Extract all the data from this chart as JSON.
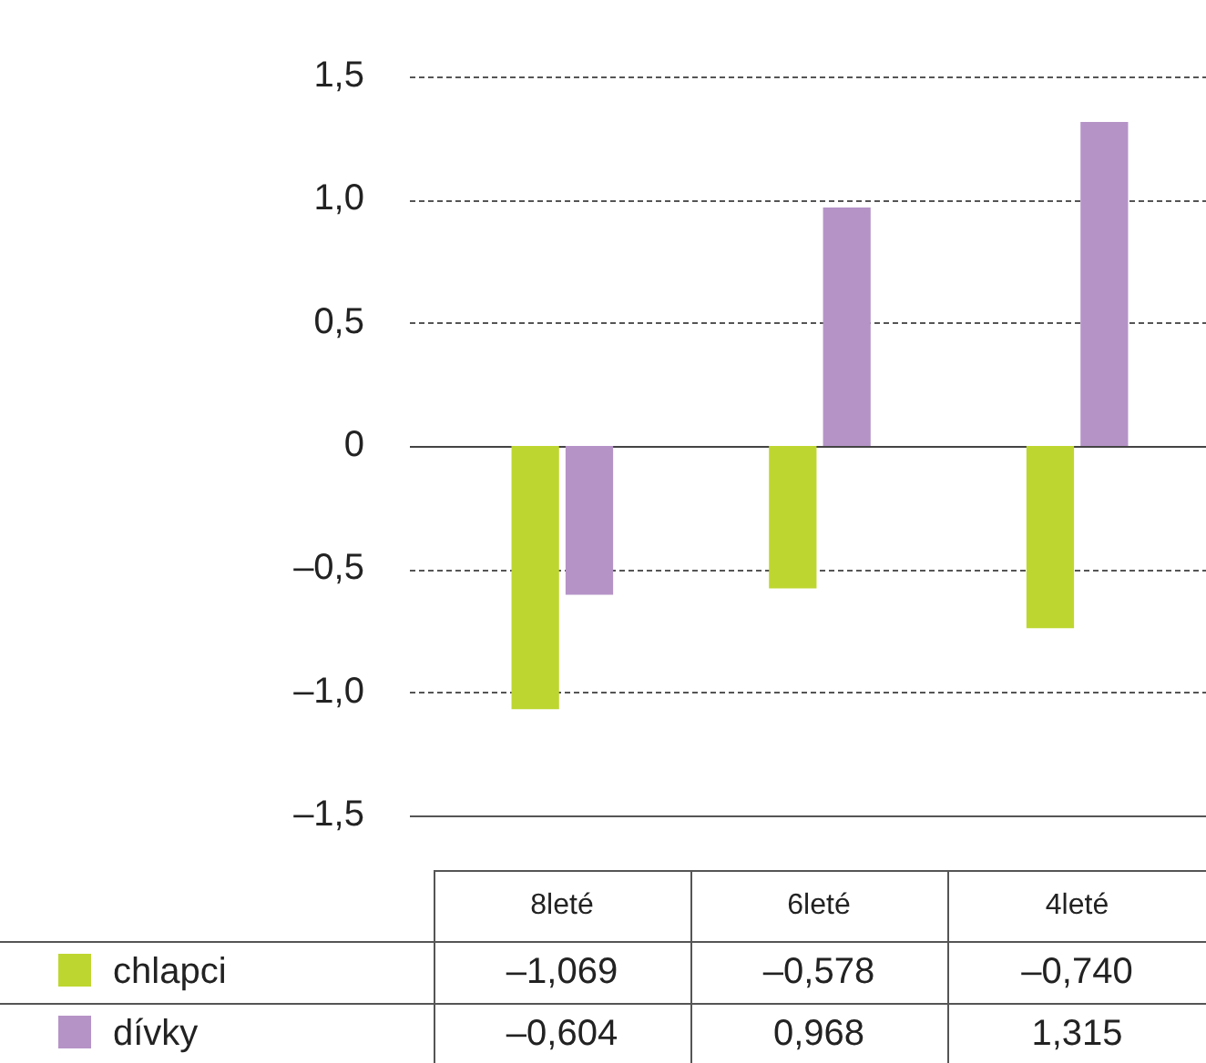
{
  "chart_data": {
    "type": "bar",
    "categories": [
      "8leté",
      "6leté",
      "4leté"
    ],
    "series": [
      {
        "name": "chlapci",
        "color": "#bed630",
        "values": [
          -1.069,
          -0.578,
          -0.74
        ],
        "value_labels": [
          "–1,069",
          "–0,578",
          "–0,740"
        ]
      },
      {
        "name": "dívky",
        "color": "#b593c7",
        "values": [
          -0.604,
          0.968,
          1.315
        ],
        "value_labels": [
          "–0,604",
          "0,968",
          "1,315"
        ]
      }
    ],
    "ylim": [
      -1.5,
      1.5
    ],
    "yticks": [
      {
        "value": -1.5,
        "label": "–1,5"
      },
      {
        "value": -1.0,
        "label": "–1,0"
      },
      {
        "value": -0.5,
        "label": "–0,5"
      },
      0,
      {
        "value": 0.5,
        "label": "0,5"
      },
      {
        "value": 1.0,
        "label": "1,0"
      },
      {
        "value": 1.5,
        "label": "1,5"
      }
    ],
    "grid": "y",
    "legend": "bottom"
  }
}
